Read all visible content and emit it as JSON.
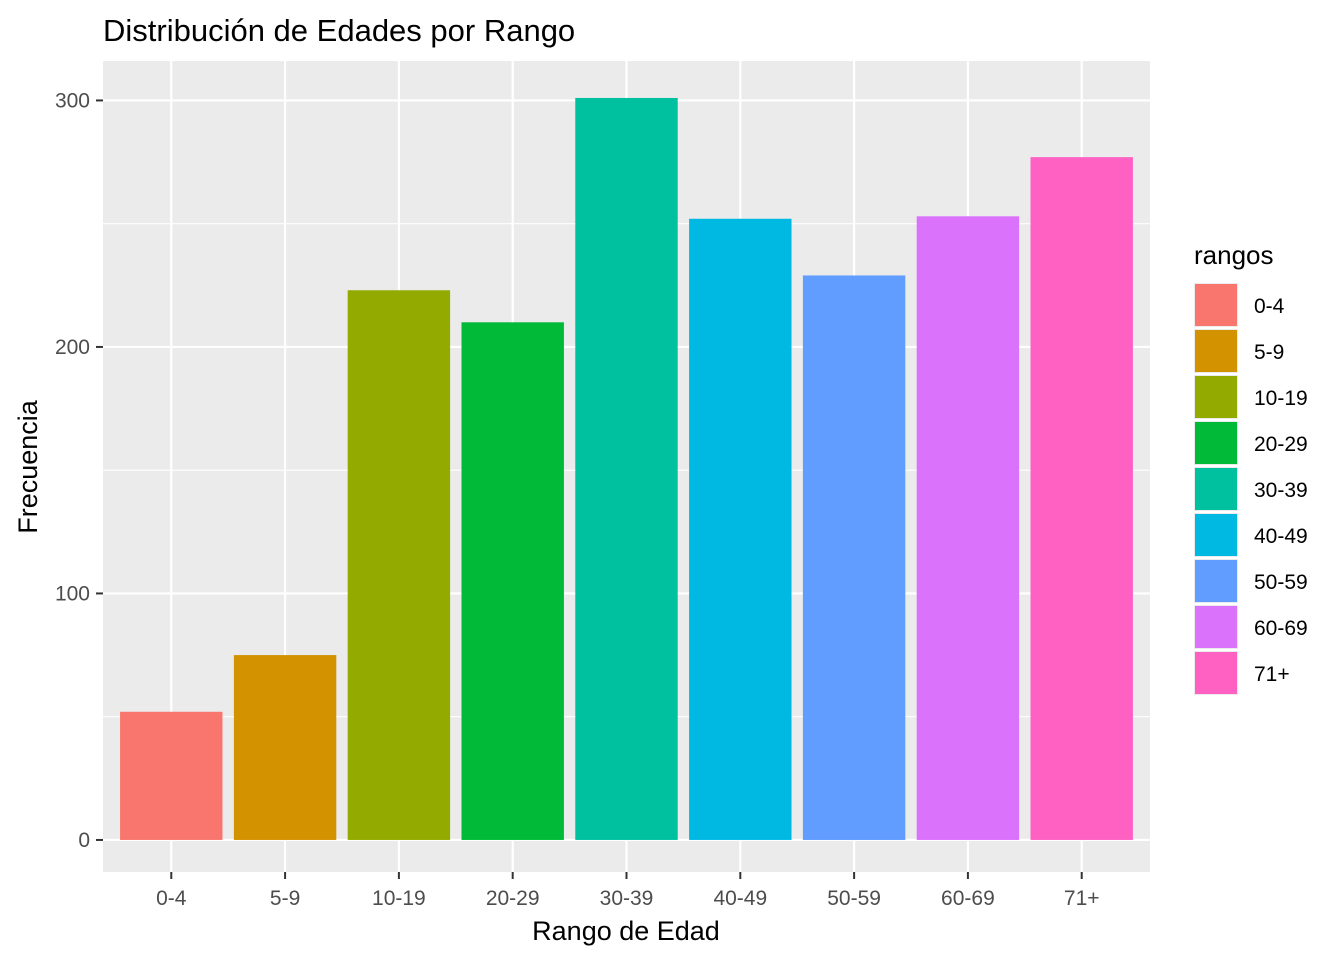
{
  "chart_data": {
    "type": "bar",
    "title": "Distribución de Edades por Rango",
    "xlabel": "Rango de Edad",
    "ylabel": "Frecuencia",
    "categories": [
      "0-4",
      "5-9",
      "10-19",
      "20-29",
      "30-39",
      "40-49",
      "50-59",
      "60-69",
      "71+"
    ],
    "values": [
      52,
      75,
      223,
      210,
      301,
      252,
      229,
      253,
      277
    ],
    "colors": [
      "#F8766D",
      "#D39200",
      "#93AA00",
      "#00BA38",
      "#00C19F",
      "#00B9E3",
      "#619CFF",
      "#DB72FB",
      "#FF61C3"
    ],
    "ylim": [
      -13,
      316
    ],
    "yticks": [
      0,
      100,
      200,
      300
    ],
    "ytick_labels": [
      "0",
      "100",
      "200",
      "300"
    ],
    "grid": true,
    "panel_background": "#EBEBEB",
    "legend": {
      "title": "rangos",
      "position": "right",
      "labels": [
        "0-4",
        "5-9",
        "10-19",
        "20-29",
        "30-39",
        "40-49",
        "50-59",
        "60-69",
        "71+"
      ]
    }
  }
}
